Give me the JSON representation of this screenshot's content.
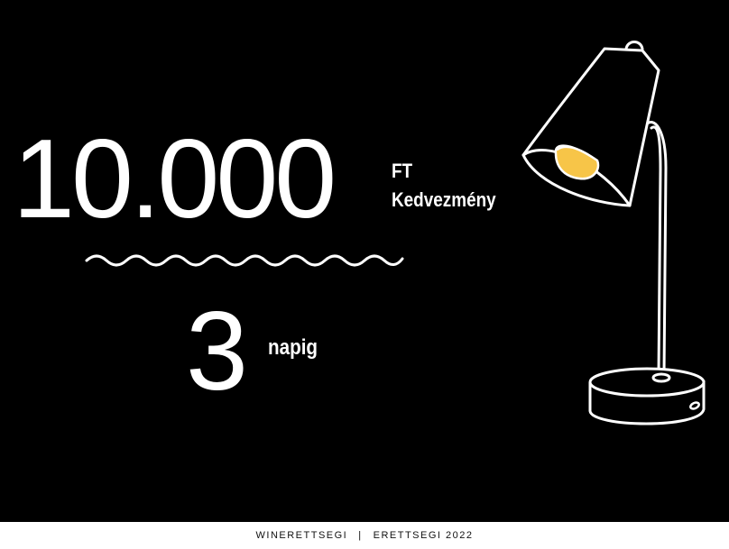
{
  "promo": {
    "amount": "10.000",
    "currency": "FT",
    "discount_label": "Kedvezmény",
    "days": "3",
    "days_label": "napig"
  },
  "footer": {
    "brand": "WINERETTSEGI",
    "separator": "|",
    "campaign": "ERETTSEGI 2022"
  },
  "colors": {
    "background": "#000000",
    "text": "#ffffff",
    "bulb": "#f7c548",
    "footer_bg": "#ffffff",
    "footer_text": "#111111"
  },
  "icons": {
    "divider": "wavy-divider",
    "illustration": "desk-lamp-icon"
  }
}
